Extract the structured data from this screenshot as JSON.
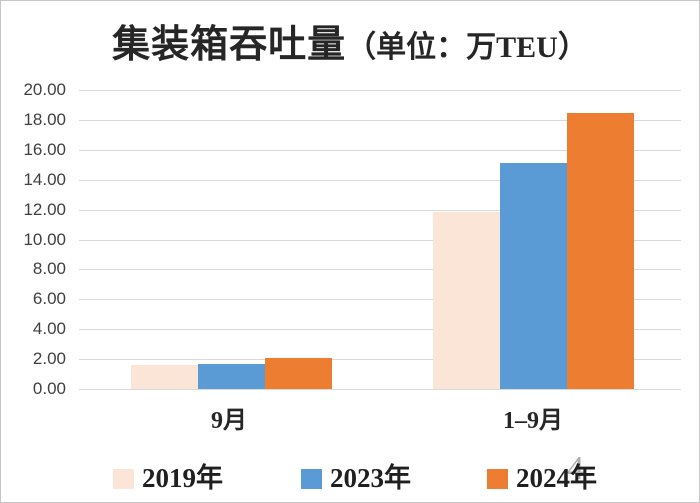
{
  "title": {
    "main": "集装箱吞吐量",
    "unit": "（单位：万TEU）"
  },
  "chart_data": {
    "type": "bar",
    "title": "集装箱吞吐量（单位：万TEU）",
    "categories": [
      "9月",
      "1–9月"
    ],
    "series": [
      {
        "name": "2019年",
        "color": "#FBE5D6",
        "values": [
          1.6,
          11.85
        ]
      },
      {
        "name": "2023年",
        "color": "#5B9BD5",
        "values": [
          1.7,
          15.1
        ]
      },
      {
        "name": "2024年",
        "color": "#ED7D31",
        "values": [
          2.05,
          18.45
        ]
      }
    ],
    "ylim": [
      0,
      20
    ],
    "ytick_step": 2,
    "ytick_labels": [
      "20.00",
      "18.00",
      "16.00",
      "14.00",
      "12.00",
      "10.00",
      "8.00",
      "6.00",
      "4.00",
      "2.00",
      "0.00"
    ],
    "grid": true,
    "legend_position": "bottom"
  },
  "watermark": {
    "text": "4",
    "color": "#aeaeae"
  },
  "colors": {
    "gridline": "#d9d9d9",
    "tick_text": "#404040",
    "text": "#262626",
    "corner_mark": "#d9382c"
  }
}
